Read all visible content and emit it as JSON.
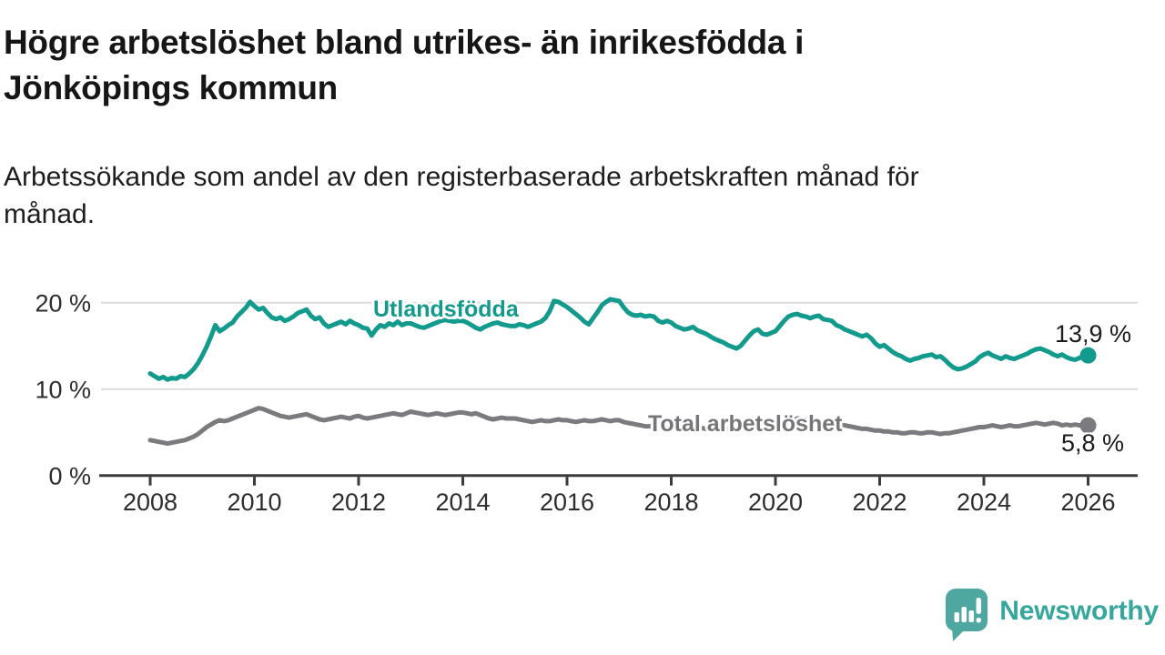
{
  "title": {
    "line1": "Högre arbetslöshet bland utrikes- än inrikesfödda i",
    "line2": "Jönköpings kommun"
  },
  "subtitle": {
    "line1": "Arbetssökande som andel av den registerbaserade arbetskraften månad för",
    "line2": "månad."
  },
  "branding": {
    "name": "Newsworthy",
    "icon": "newsworthy-speech-bubble-bar-chart-icon",
    "bubble_color": "#4ea7a0",
    "text_color": "#35a79c"
  },
  "colors": {
    "series_foreign_born": "#129a8c",
    "series_total": "#7b7b7f",
    "gridline": "#dcdcdc",
    "axis": "#3b3b3b",
    "tick_text": "#2d2d2d"
  },
  "chart_data": {
    "type": "line",
    "title": "Högre arbetslöshet bland utrikes- än inrikesfödda i Jönköpings kommun",
    "xlabel": "",
    "ylabel": "",
    "grid": "horizontal",
    "legend_position": "inline-labels",
    "xlim": [
      2007,
      2027
    ],
    "ylim": [
      0,
      22
    ],
    "yticks": [
      {
        "value": 0,
        "label": "0 %"
      },
      {
        "value": 10,
        "label": "10 %"
      },
      {
        "value": 20,
        "label": "20 %"
      }
    ],
    "xticks": [
      {
        "value": 2008,
        "label": "2008"
      },
      {
        "value": 2010,
        "label": "2010"
      },
      {
        "value": 2012,
        "label": "2012"
      },
      {
        "value": 2014,
        "label": "2014"
      },
      {
        "value": 2016,
        "label": "2016"
      },
      {
        "value": 2018,
        "label": "2018"
      },
      {
        "value": 2020,
        "label": "2020"
      },
      {
        "value": 2022,
        "label": "2022"
      },
      {
        "value": 2024,
        "label": "2024"
      },
      {
        "value": 2026,
        "label": "2026"
      }
    ],
    "series": [
      {
        "name": "Utlandsfödda",
        "color": "#129a8c",
        "end_label": "13,9 %",
        "end_value": 13.9,
        "start_year": 2008,
        "points_per_year": 12,
        "values": [
          11.8,
          11.5,
          11.2,
          11.4,
          11.1,
          11.3,
          11.2,
          11.5,
          11.4,
          11.8,
          12.3,
          13.0,
          13.9,
          14.9,
          16.1,
          17.4,
          16.7,
          17.0,
          17.4,
          17.7,
          18.4,
          18.9,
          19.4,
          20.1,
          19.6,
          19.2,
          19.4,
          18.8,
          18.3,
          18.1,
          18.3,
          17.9,
          18.1,
          18.4,
          18.8,
          19.0,
          19.2,
          18.5,
          18.1,
          18.3,
          17.6,
          17.2,
          17.4,
          17.6,
          17.8,
          17.5,
          17.9,
          17.6,
          17.4,
          17.1,
          17.0,
          16.2,
          16.9,
          17.4,
          17.2,
          17.6,
          17.4,
          17.8,
          17.4,
          17.6,
          17.6,
          17.4,
          17.2,
          17.1,
          17.3,
          17.5,
          17.7,
          17.9,
          18.0,
          17.9,
          17.8,
          17.9,
          17.9,
          17.7,
          17.4,
          17.1,
          16.9,
          17.2,
          17.4,
          17.6,
          17.7,
          17.5,
          17.4,
          17.3,
          17.3,
          17.5,
          17.4,
          17.2,
          17.4,
          17.6,
          17.8,
          18.2,
          19.0,
          20.2,
          20.1,
          19.8,
          19.5,
          19.1,
          18.7,
          18.3,
          17.8,
          17.5,
          18.2,
          18.9,
          19.7,
          20.1,
          20.4,
          20.3,
          20.2,
          19.5,
          18.9,
          18.6,
          18.5,
          18.6,
          18.4,
          18.5,
          18.4,
          17.9,
          17.7,
          17.9,
          17.7,
          17.3,
          17.1,
          16.9,
          17.0,
          17.2,
          16.8,
          16.6,
          16.4,
          16.1,
          15.8,
          15.6,
          15.4,
          15.1,
          14.9,
          14.7,
          15.0,
          15.6,
          16.2,
          16.7,
          16.9,
          16.4,
          16.3,
          16.5,
          16.7,
          17.3,
          17.9,
          18.4,
          18.6,
          18.7,
          18.5,
          18.4,
          18.2,
          18.4,
          18.5,
          18.1,
          18.0,
          17.9,
          17.4,
          17.2,
          16.9,
          16.7,
          16.5,
          16.3,
          16.1,
          16.3,
          15.9,
          15.3,
          14.9,
          15.1,
          14.7,
          14.3,
          14.0,
          13.8,
          13.5,
          13.3,
          13.5,
          13.6,
          13.8,
          13.9,
          14.0,
          13.7,
          13.8,
          13.4,
          12.9,
          12.5,
          12.3,
          12.4,
          12.6,
          12.9,
          13.2,
          13.7,
          14.0,
          14.2,
          13.9,
          13.7,
          13.5,
          13.8,
          13.6,
          13.5,
          13.7,
          13.9,
          14.1,
          14.4,
          14.6,
          14.7,
          14.5,
          14.3,
          14.0,
          13.8,
          14.0,
          13.7,
          13.5,
          13.4,
          13.6,
          13.8,
          13.9
        ]
      },
      {
        "name": "Total arbetslöshet",
        "color": "#7b7b7f",
        "end_label": "5,8 %",
        "end_value": 5.8,
        "start_year": 2008,
        "points_per_year": 12,
        "values": [
          4.1,
          4.0,
          3.9,
          3.8,
          3.7,
          3.8,
          3.9,
          4.0,
          4.1,
          4.3,
          4.5,
          4.8,
          5.2,
          5.6,
          5.9,
          6.2,
          6.4,
          6.3,
          6.4,
          6.6,
          6.8,
          7.0,
          7.2,
          7.4,
          7.6,
          7.8,
          7.7,
          7.5,
          7.3,
          7.1,
          6.9,
          6.8,
          6.7,
          6.8,
          6.9,
          7.0,
          7.1,
          6.9,
          6.7,
          6.5,
          6.4,
          6.5,
          6.6,
          6.7,
          6.8,
          6.7,
          6.6,
          6.8,
          6.9,
          6.7,
          6.6,
          6.7,
          6.8,
          6.9,
          7.0,
          7.1,
          7.2,
          7.1,
          7.0,
          7.2,
          7.4,
          7.3,
          7.2,
          7.1,
          7.0,
          7.1,
          7.2,
          7.1,
          7.0,
          7.1,
          7.2,
          7.3,
          7.3,
          7.2,
          7.1,
          7.2,
          7.0,
          6.8,
          6.6,
          6.5,
          6.6,
          6.7,
          6.6,
          6.6,
          6.6,
          6.5,
          6.4,
          6.3,
          6.2,
          6.3,
          6.4,
          6.3,
          6.3,
          6.4,
          6.5,
          6.4,
          6.4,
          6.3,
          6.2,
          6.3,
          6.4,
          6.3,
          6.3,
          6.4,
          6.5,
          6.4,
          6.3,
          6.4,
          6.4,
          6.2,
          6.1,
          6.0,
          5.9,
          5.8,
          5.7,
          5.7,
          5.8,
          5.7,
          5.6,
          5.7,
          5.7,
          5.6,
          5.5,
          5.6,
          5.5,
          5.4,
          5.4,
          5.5,
          5.4,
          5.4,
          5.3,
          5.3,
          5.3,
          5.4,
          5.4,
          5.5,
          5.6,
          5.5,
          5.5,
          5.6,
          5.6,
          5.7,
          5.7,
          5.6,
          5.6,
          5.7,
          5.9,
          6.2,
          6.4,
          6.6,
          6.6,
          6.5,
          6.4,
          6.3,
          6.3,
          6.2,
          6.2,
          6.1,
          6.0,
          5.9,
          5.8,
          5.7,
          5.6,
          5.5,
          5.4,
          5.4,
          5.3,
          5.2,
          5.2,
          5.1,
          5.1,
          5.0,
          5.0,
          4.9,
          4.9,
          5.0,
          5.0,
          4.9,
          4.9,
          5.0,
          5.0,
          4.9,
          4.8,
          4.9,
          4.9,
          5.0,
          5.1,
          5.2,
          5.3,
          5.4,
          5.5,
          5.6,
          5.6,
          5.7,
          5.8,
          5.7,
          5.6,
          5.7,
          5.8,
          5.7,
          5.7,
          5.8,
          5.9,
          6.0,
          6.1,
          6.0,
          5.9,
          6.0,
          6.1,
          6.0,
          5.8,
          5.9,
          5.8,
          5.9,
          5.8,
          5.8,
          5.8
        ]
      }
    ]
  }
}
